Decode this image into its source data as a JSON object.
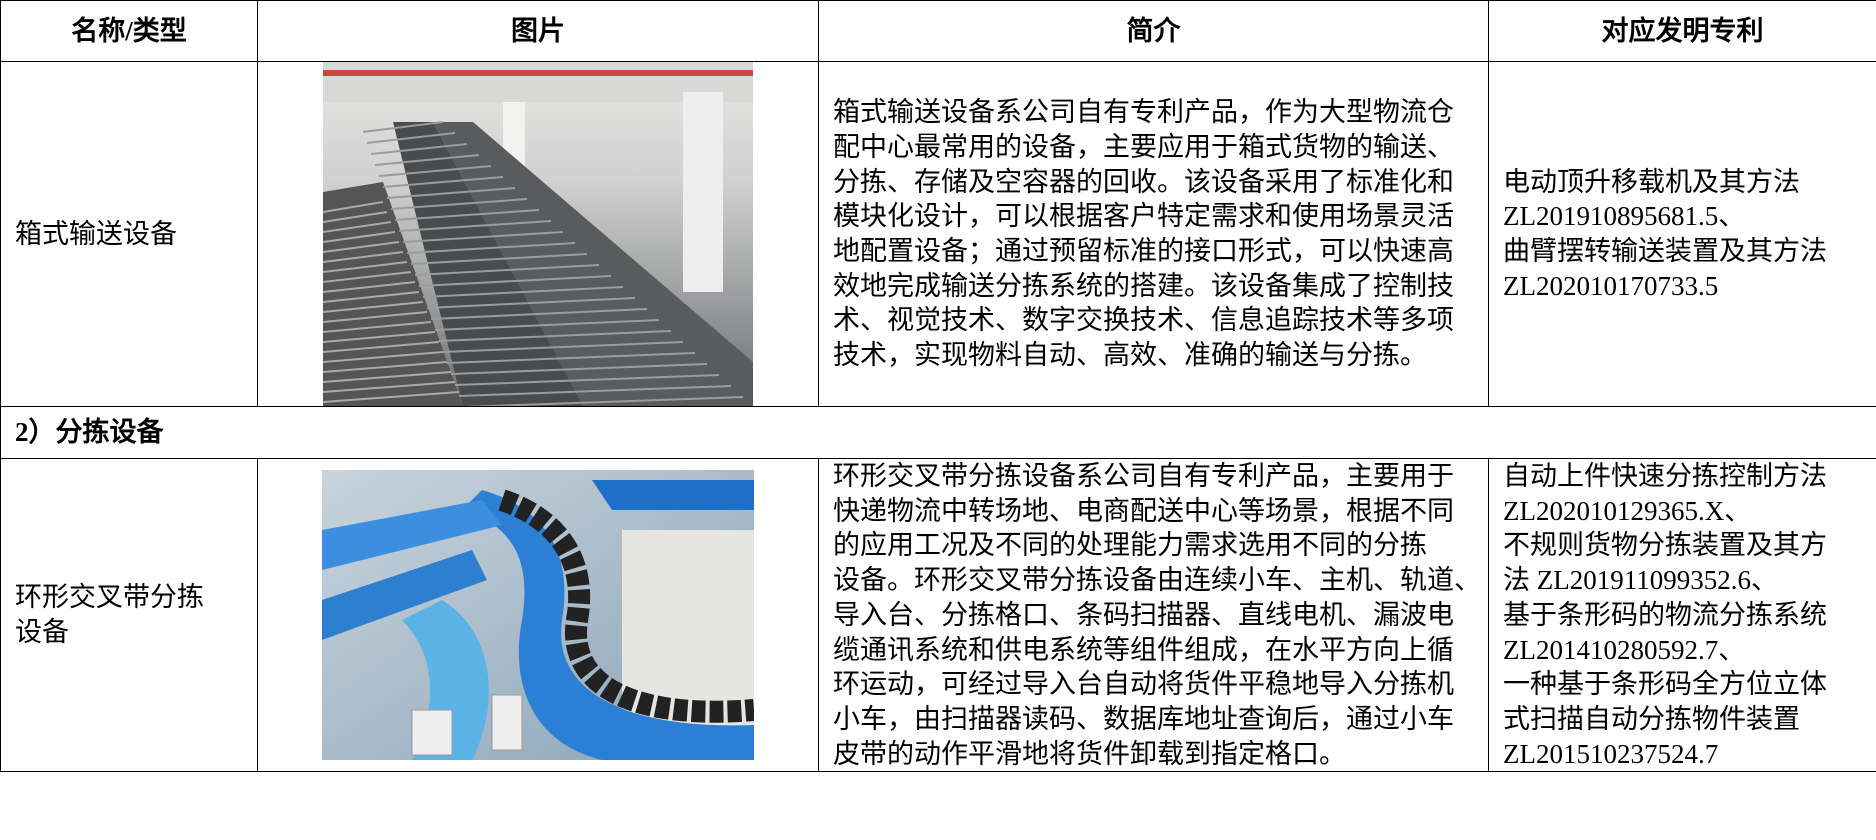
{
  "table": {
    "headers": [
      "名称/类型",
      "图片",
      "简介",
      "对应发明专利"
    ],
    "rows": [
      {
        "name": [
          "箱式输送设备"
        ],
        "description": [
          "箱式输送设备系公司自有专利产品，作为大型物流仓",
          "配中心最常用的设备，主要应用于箱式货物的输送、",
          "分拣、存储及空容器的回收。该设备采用了标准化和",
          "模块化设计，可以根据客户特定需求和使用场景灵活",
          "地配置设备；通过预留标准的接口形式，可以快速高",
          "效地完成输送分拣系统的搭建。该设备集成了控制技",
          "术、视觉技术、数字交换技术、信息追踪技术等多项",
          "技术，实现物料自动、高效、准确的输送与分拣。"
        ],
        "patents": [
          "电动顶升移载机及其方法",
          "ZL201910895681.5、",
          "曲臂摆转输送装置及其方法",
          "ZL202010170733.5"
        ]
      },
      {
        "section": "2）分拣设备"
      },
      {
        "name": [
          "环形交叉带分拣",
          "设备"
        ],
        "description": [
          "环形交叉带分拣设备系公司自有专利产品，主要用于",
          "快递物流中转场地、电商配送中心等场景，根据不同",
          "的应用工况及不同的处理能力需求选用不同的分拣",
          "设备。环形交叉带分拣设备由连续小车、主机、轨道、",
          "导入台、分拣格口、条码扫描器、直线电机、漏波电",
          "缆通讯系统和供电系统等组件组成，在水平方向上循",
          "环运动，可经过导入台自动将货件平稳地导入分拣机",
          "小车，由扫描器读码、数据库地址查询后，通过小车",
          "皮带的动作平滑地将货件卸载到指定格口。"
        ],
        "patents": [
          "自动上件快速分拣控制方法",
          "ZL202010129365.X、",
          "不规则货物分拣装置及其方",
          "法 ZL201911099352.6、",
          "基于条形码的物流分拣系统",
          "ZL201410280592.7、",
          "一种基于条形码全方位立体",
          "式扫描自动分拣物件装置",
          "ZL201510237524.7"
        ]
      }
    ]
  }
}
